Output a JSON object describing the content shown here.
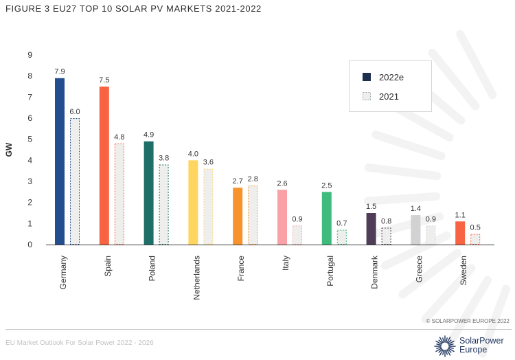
{
  "header": {
    "title": "FIGURE 3 EU27 TOP 10 SOLAR PV MARKETS 2021-2022"
  },
  "footer": {
    "copyright": "© SOLARPOWER EUROPE 2022",
    "source": "EU Market Outlook For Solar Power 2022 - 2026",
    "logo_line1": "SolarPower",
    "logo_line2": "Europe"
  },
  "colors": {
    "series_2021_fill": "#eeeeec",
    "legend_dark": "#1c2f4e",
    "legend_2021_border": "#8fa3a0"
  },
  "chart_data": {
    "type": "bar",
    "title": "FIGURE 3 EU27 TOP 10 SOLAR PV MARKETS 2021-2022",
    "xlabel": "",
    "ylabel": "GW",
    "ylim": [
      0,
      9
    ],
    "yticks": [
      "0",
      "1",
      "2",
      "3",
      "4",
      "5",
      "6",
      "7",
      "8",
      "9"
    ],
    "grid": false,
    "legend_position": "top-right",
    "categories": [
      "Germany",
      "Spain",
      "Poland",
      "Netherlands",
      "France",
      "Italy",
      "Portugal",
      "Denmark",
      "Greece",
      "Sweden"
    ],
    "category_colors": [
      "#234e8e",
      "#f86441",
      "#1f6f69",
      "#ffd562",
      "#f7932d",
      "#f9a1a7",
      "#3fbb7e",
      "#4f3d58",
      "#d2d2d2",
      "#f86441"
    ],
    "series": [
      {
        "name": "2022e",
        "values": [
          7.9,
          7.5,
          4.9,
          4.0,
          2.7,
          2.6,
          2.5,
          1.5,
          1.4,
          1.1
        ],
        "labels": [
          "7.9",
          "7.5",
          "4.9",
          "4.0",
          "2.7",
          "2.6",
          "2.5",
          "1.5",
          "1.4",
          "1.1"
        ],
        "style": "solid"
      },
      {
        "name": "2021",
        "values": [
          6.0,
          4.8,
          3.8,
          3.6,
          2.8,
          0.9,
          0.7,
          0.8,
          0.9,
          0.5
        ],
        "labels": [
          "6.0",
          "4.8",
          "3.8",
          "3.6",
          "2.8",
          "0.9",
          "0.7",
          "0.8",
          "0.9",
          "0.5"
        ],
        "style": "dashed-outline"
      }
    ]
  }
}
